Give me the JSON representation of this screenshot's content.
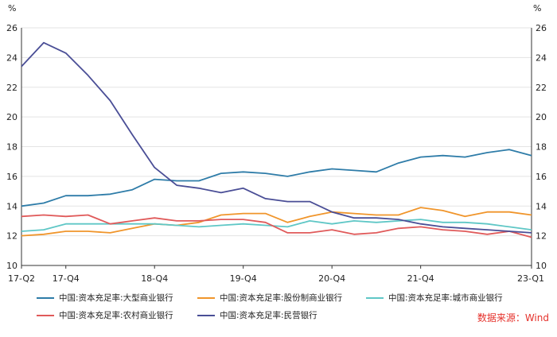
{
  "chart_data": {
    "type": "line",
    "left_unit": "%",
    "right_unit": "%",
    "ylim": [
      10,
      26
    ],
    "yticks": [
      10,
      12,
      14,
      16,
      18,
      20,
      22,
      24,
      26
    ],
    "grid": true,
    "x": [
      "17-Q2",
      "17-Q3",
      "17-Q4",
      "18-Q1",
      "18-Q2",
      "18-Q3",
      "18-Q4",
      "19-Q1",
      "19-Q2",
      "19-Q3",
      "19-Q4",
      "20-Q1",
      "20-Q2",
      "20-Q3",
      "20-Q4",
      "21-Q1",
      "21-Q2",
      "21-Q3",
      "21-Q4",
      "22-Q1",
      "22-Q2",
      "22-Q3",
      "22-Q4",
      "23-Q1"
    ],
    "xtick_labels": [
      "17-Q2",
      "17-Q4",
      "18-Q4",
      "19-Q4",
      "20-Q4",
      "21-Q4",
      "23-Q1"
    ],
    "series": [
      {
        "name": "中国:资本充足率:大型商业银行",
        "color": "#2e7ca8",
        "values": [
          14.0,
          14.2,
          14.7,
          14.7,
          14.8,
          15.1,
          15.8,
          15.7,
          15.7,
          16.2,
          16.3,
          16.2,
          16.0,
          16.3,
          16.5,
          16.4,
          16.3,
          16.9,
          17.3,
          17.4,
          17.3,
          17.6,
          17.8,
          17.4
        ]
      },
      {
        "name": "中国:资本充足率:股份制商业银行",
        "color": "#f0952b",
        "values": [
          12.0,
          12.1,
          12.3,
          12.3,
          12.2,
          12.5,
          12.8,
          12.7,
          12.9,
          13.4,
          13.5,
          13.5,
          12.9,
          13.3,
          13.6,
          13.5,
          13.4,
          13.4,
          13.9,
          13.7,
          13.3,
          13.6,
          13.6,
          13.4
        ]
      },
      {
        "name": "中国:资本充足率:城市商业银行",
        "color": "#5fc7c6",
        "values": [
          12.3,
          12.4,
          12.8,
          12.8,
          12.8,
          12.8,
          12.8,
          12.7,
          12.6,
          12.7,
          12.8,
          12.7,
          12.6,
          13.0,
          12.8,
          13.0,
          12.9,
          13.0,
          13.1,
          12.9,
          12.9,
          12.8,
          12.6,
          12.4
        ]
      },
      {
        "name": "中国:资本充足率:农村商业银行",
        "color": "#e05a5a",
        "values": [
          13.3,
          13.4,
          13.3,
          13.4,
          12.8,
          13.0,
          13.2,
          13.0,
          13.0,
          13.1,
          13.1,
          12.9,
          12.2,
          12.2,
          12.4,
          12.1,
          12.2,
          12.5,
          12.6,
          12.4,
          12.3,
          12.1,
          12.3,
          11.9
        ]
      },
      {
        "name": "中国:资本充足率:民营银行",
        "color": "#4a4e96",
        "values": [
          23.4,
          25.0,
          24.3,
          22.8,
          21.1,
          18.8,
          16.6,
          15.4,
          15.2,
          14.9,
          15.2,
          14.5,
          14.3,
          14.3,
          13.6,
          13.2,
          13.2,
          13.1,
          12.8,
          12.6,
          12.5,
          12.4,
          12.3,
          12.2
        ]
      }
    ]
  },
  "source": "数据来源：Wind"
}
